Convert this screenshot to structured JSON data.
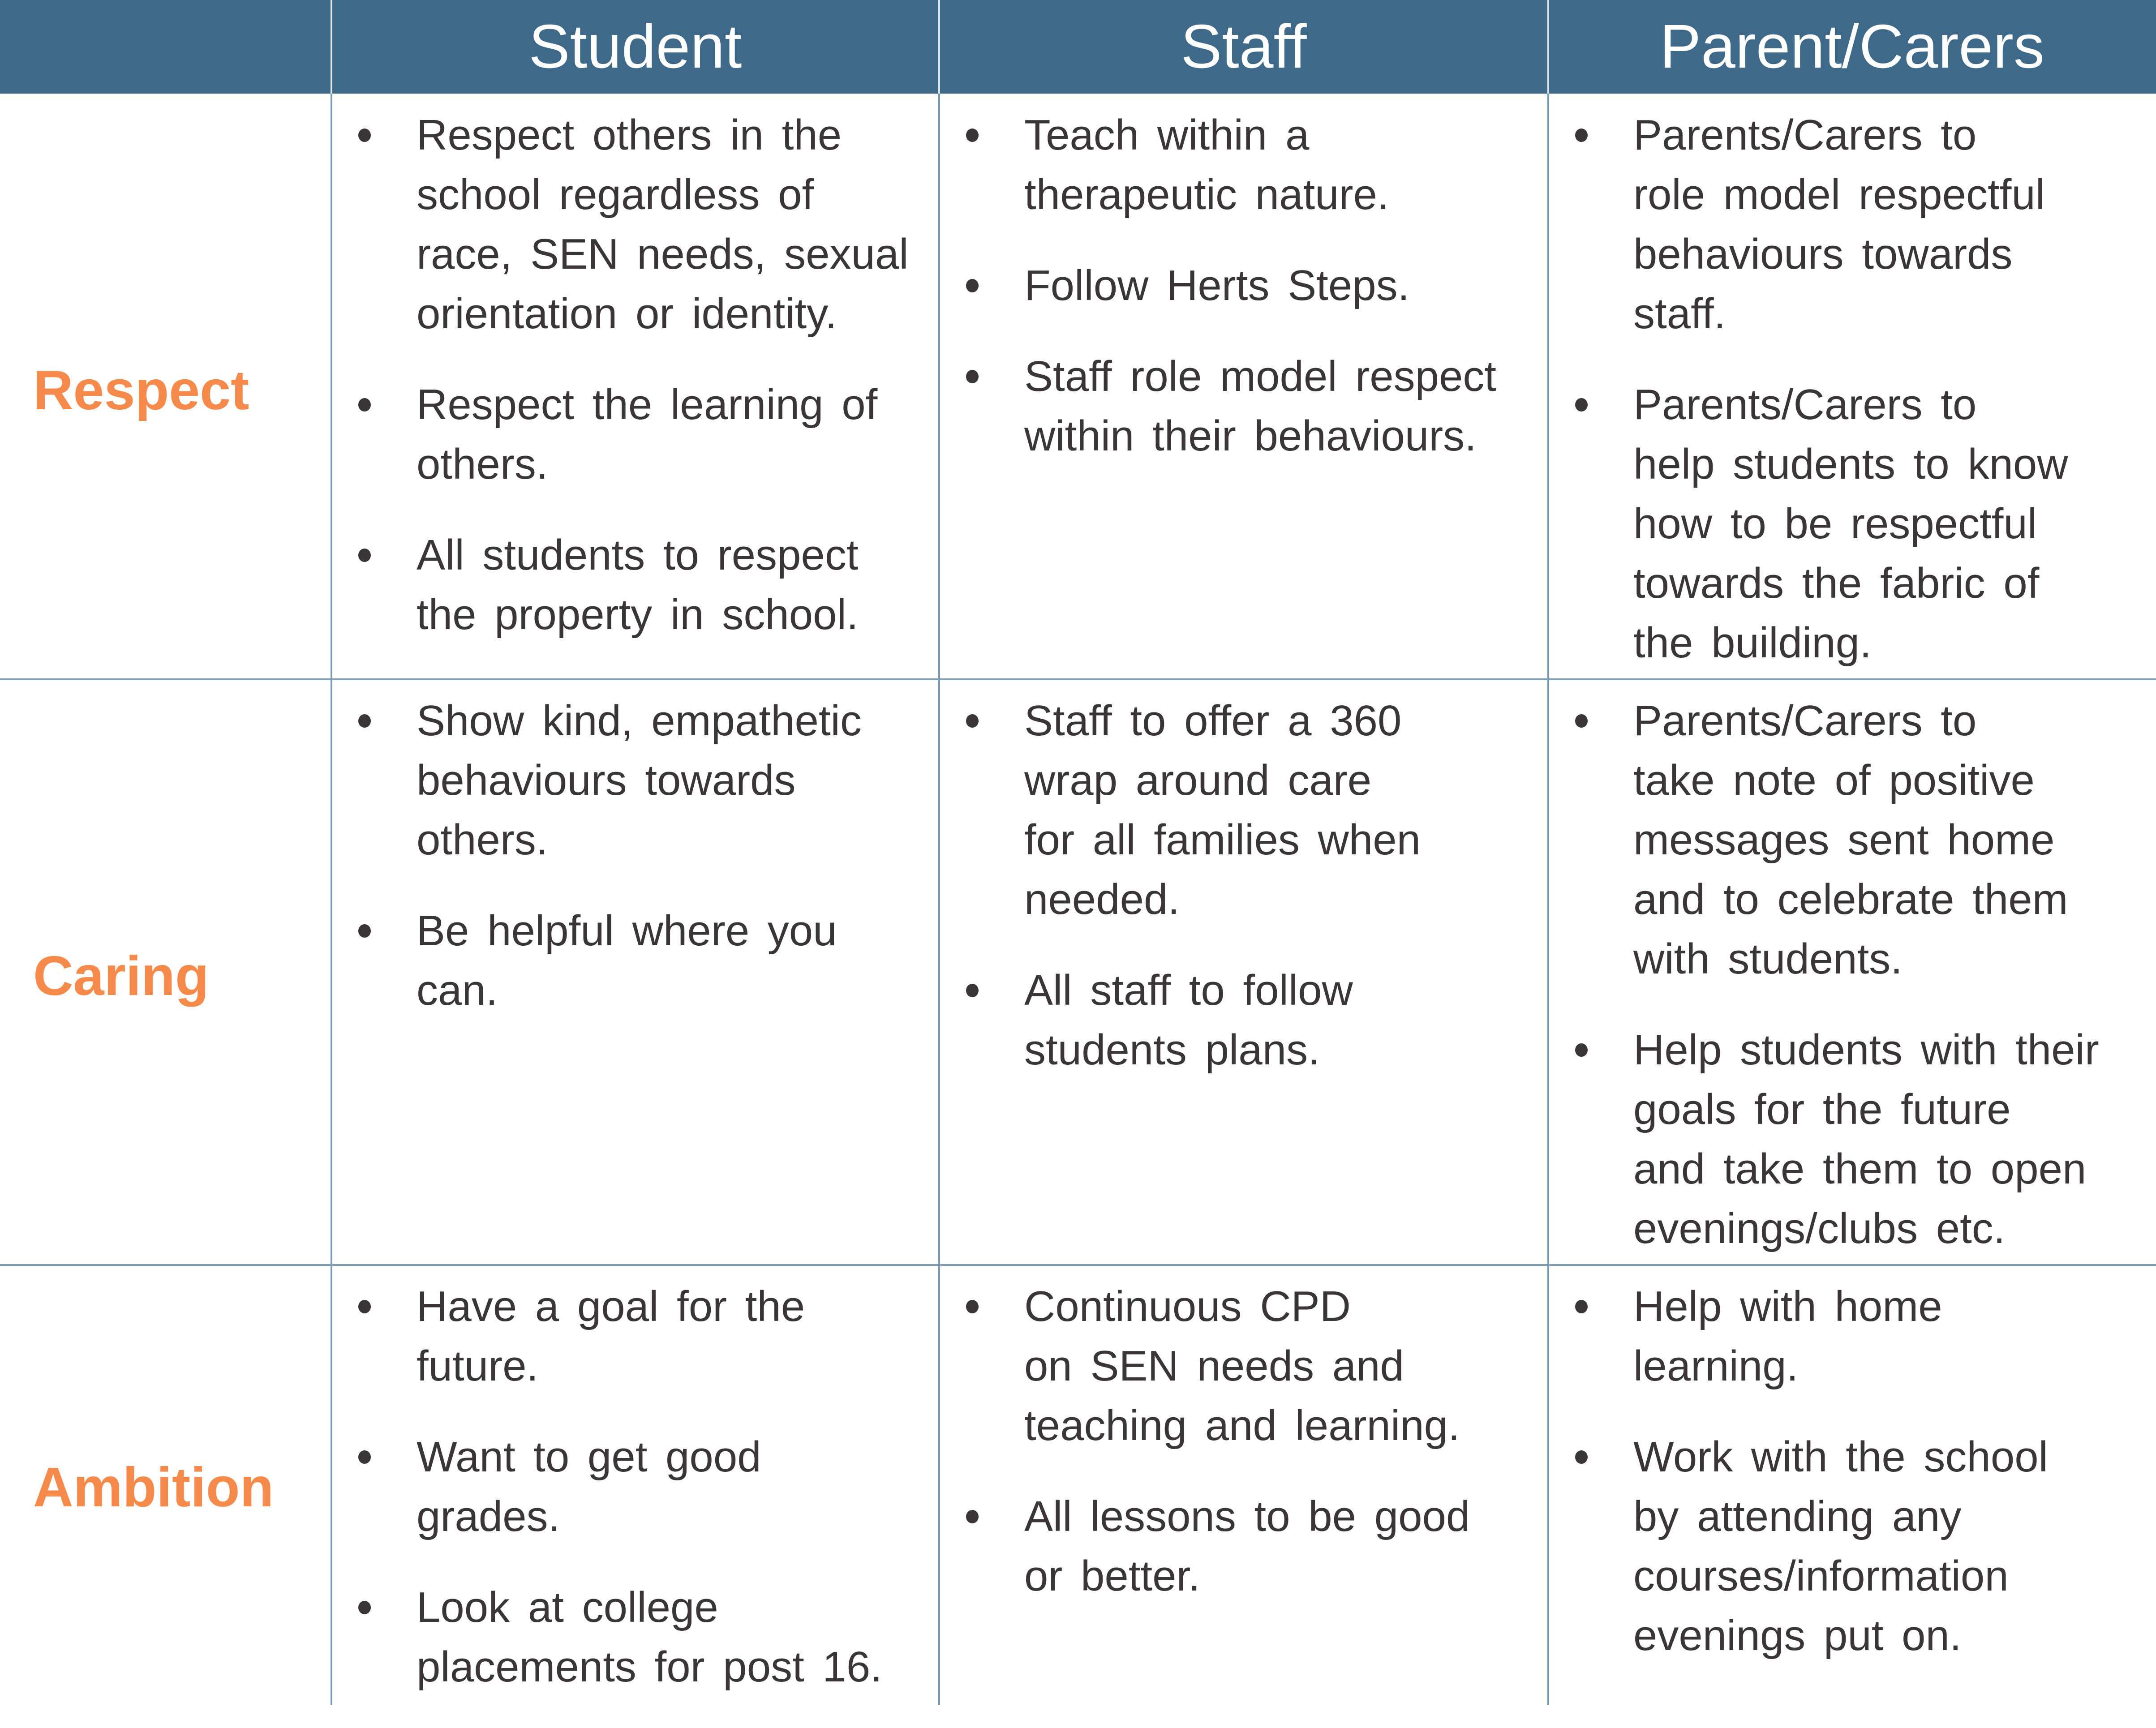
{
  "header": {
    "columns": [
      "",
      "Student",
      "Staff",
      "Parent/Carers"
    ]
  },
  "colors": {
    "header_bg": "#3f6988",
    "label": "#f58a4b",
    "text": "#3a3536",
    "grid": "#7a9bb5"
  },
  "rows": [
    {
      "label": "Respect",
      "student": [
        "Respect others in the\nschool regardless of\nrace, SEN needs, sexual\norientation or identity.",
        "Respect the learning of\nothers.",
        "All students to respect\nthe property in school."
      ],
      "staff": [
        "Teach within a\ntherapeutic nature.",
        "Follow Herts Steps.",
        "Staff role model respect\nwithin their behaviours."
      ],
      "parents": [
        "Parents/Carers to\nrole model respectful\nbehaviours towards\nstaff.",
        "Parents/Carers to\nhelp students to know\nhow to be respectful\ntowards the fabric of\nthe building."
      ]
    },
    {
      "label": "Caring",
      "student": [
        "Show kind, empathetic\nbehaviours towards\nothers.",
        "Be helpful where you\ncan."
      ],
      "staff": [
        "Staff to offer a 360\nwrap around care\nfor all families when\nneeded.",
        "All staff to follow\nstudents plans."
      ],
      "parents": [
        "Parents/Carers to\ntake note of positive\nmessages sent home\nand to celebrate them\nwith students.",
        "Help students with their\ngoals for the future\nand take them to open\nevenings/clubs etc."
      ]
    },
    {
      "label": "Ambition",
      "student": [
        "Have a goal for the\nfuture.",
        "Want to get good\ngrades.",
        "Look at college\nplacements for post 16."
      ],
      "staff": [
        "Continuous CPD\non SEN needs and\nteaching and learning.",
        "All lessons to be good\nor better."
      ],
      "parents": [
        "Help with home\nlearning.",
        "Work with the school\nby attending any\ncourses/information\nevenings put on."
      ]
    }
  ]
}
